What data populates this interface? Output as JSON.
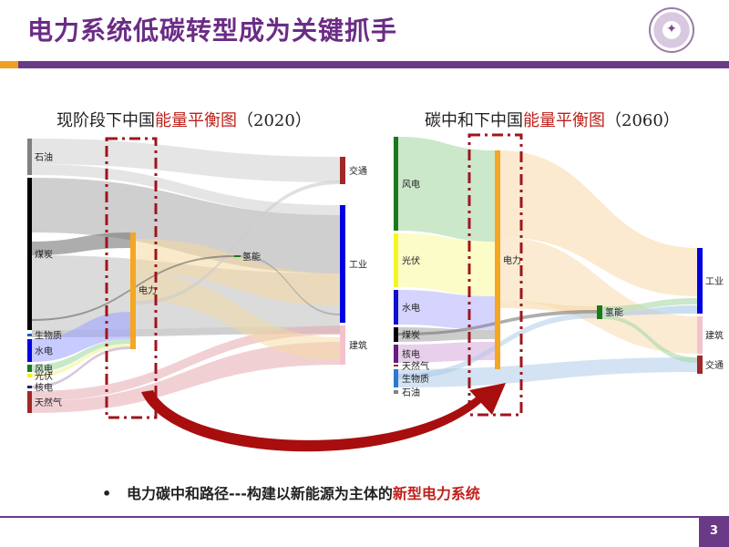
{
  "header": {
    "title": "电力系统低碳转型成为关键抓手",
    "logo_text": "清华大学"
  },
  "left_diagram": {
    "title_prefix": "现阶段下中国",
    "title_highlight": "能量平衡图",
    "title_suffix": "（2020）",
    "sources": [
      {
        "label": "石油",
        "color": "#808080"
      },
      {
        "label": "煤炭",
        "color": "#000000"
      },
      {
        "label": "生物质",
        "color": "#1f5fbf"
      },
      {
        "label": "水电",
        "color": "#0000e0"
      },
      {
        "label": "风电",
        "color": "#1a7a1a"
      },
      {
        "label": "光伏",
        "color": "#f0f020"
      },
      {
        "label": "核电",
        "color": "#2a1a70"
      },
      {
        "label": "天然气",
        "color": "#a02828"
      }
    ],
    "electricity": {
      "label": "电力",
      "color": "#f5a623"
    },
    "hydrogen": {
      "label": "氢能",
      "color": "#1a7a1a"
    },
    "sinks": [
      {
        "label": "交通",
        "color": "#a02828"
      },
      {
        "label": "工业",
        "color": "#0000e0"
      },
      {
        "label": "建筑",
        "color": "#f4c2cc"
      }
    ]
  },
  "right_diagram": {
    "title_prefix": "碳中和下中国",
    "title_highlight": "能量平衡图",
    "title_suffix": "（2060）",
    "sources": [
      {
        "label": "风电",
        "color": "#1a7a1a"
      },
      {
        "label": "光伏",
        "color": "#f5f520"
      },
      {
        "label": "水电",
        "color": "#1010d0"
      },
      {
        "label": "煤炭",
        "color": "#000000"
      },
      {
        "label": "核电",
        "color": "#6a1a80"
      },
      {
        "label": "天然气",
        "color": "#a02828"
      },
      {
        "label": "生物质",
        "color": "#2a7ad0"
      },
      {
        "label": "石油",
        "color": "#808080"
      }
    ],
    "electricity": {
      "label": "电力",
      "color": "#f5a623"
    },
    "hydrogen": {
      "label": "氢能",
      "color": "#1a7a1a"
    },
    "sinks": [
      {
        "label": "工业",
        "color": "#0000e0"
      },
      {
        "label": "建筑",
        "color": "#f4c2cc"
      },
      {
        "label": "交通",
        "color": "#a02828"
      }
    ]
  },
  "bullet": {
    "marker": "•",
    "text": "电力碳中和路径---构建以新能源为主体的",
    "highlight": "新型电力系统"
  },
  "page_number": "3",
  "colors": {
    "accent": "#6b3a86",
    "highlight": "#c0201a",
    "orange": "#f0a020"
  }
}
